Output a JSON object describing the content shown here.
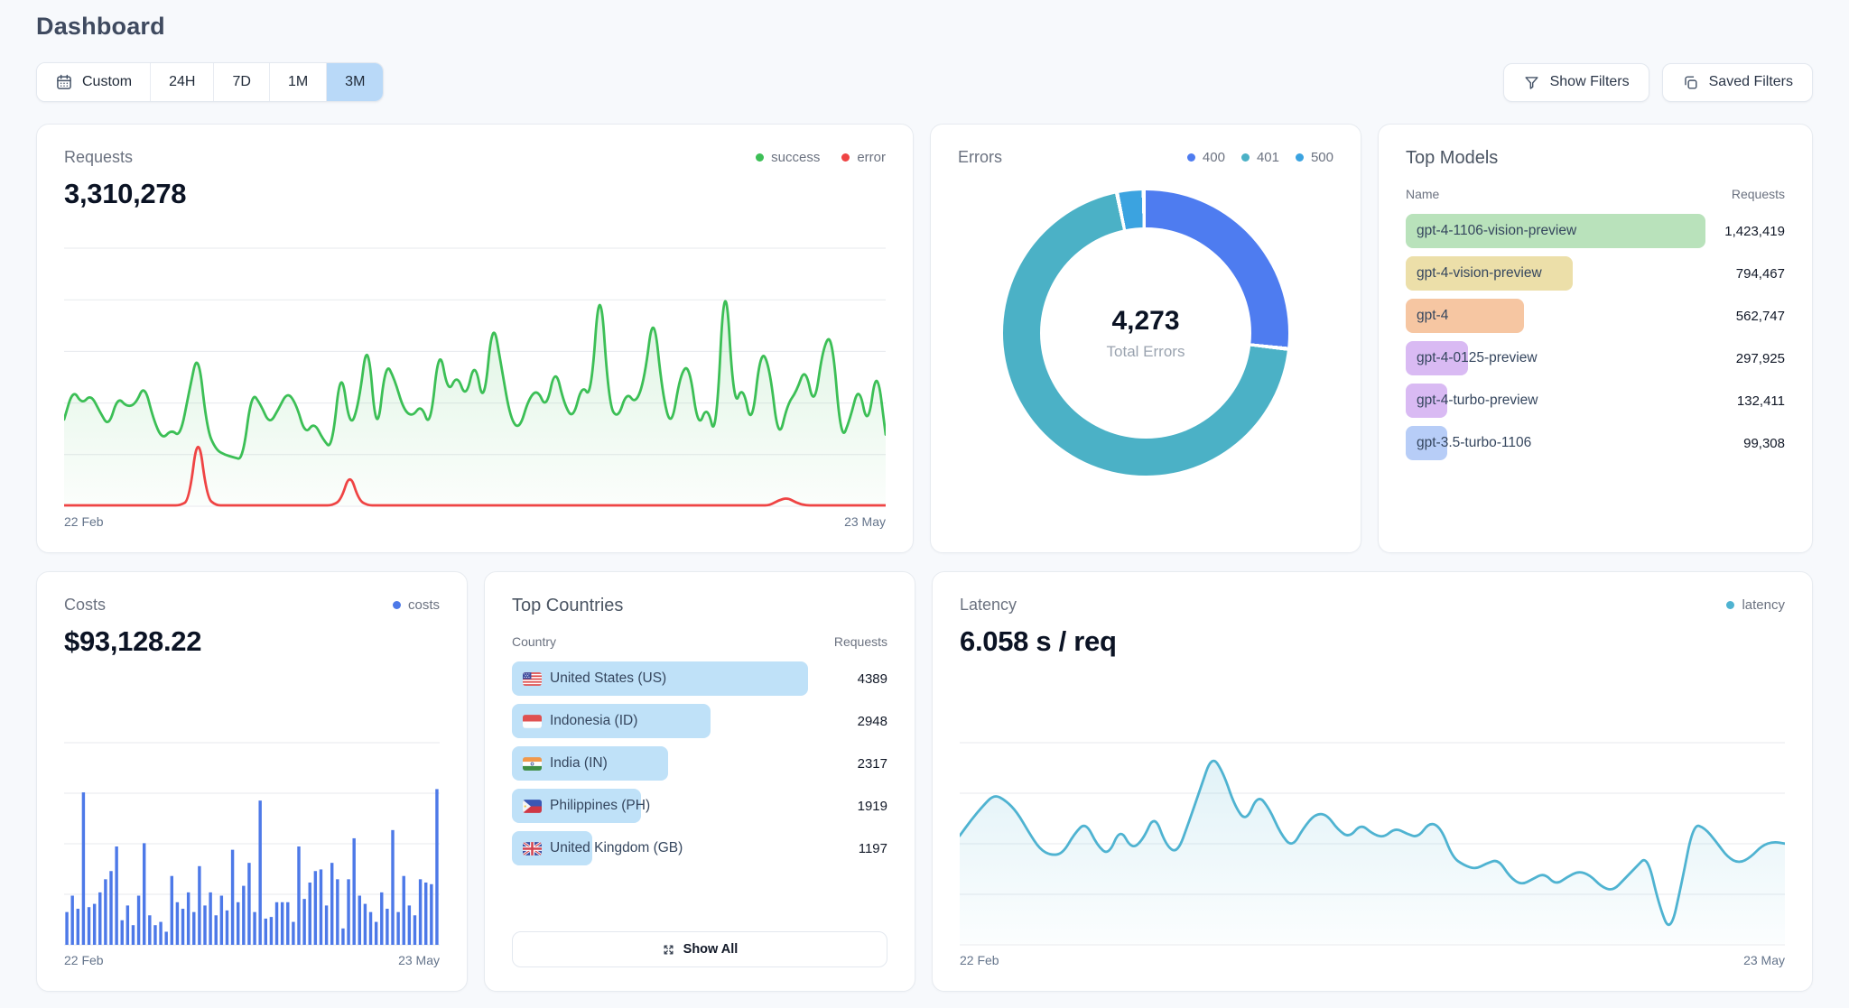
{
  "page": {
    "title": "Dashboard"
  },
  "colors": {
    "time_range_selected_bg": "#b9d9f8"
  },
  "toolbar": {
    "time_ranges": [
      {
        "label": "Custom"
      },
      {
        "label": "24H"
      },
      {
        "label": "7D"
      },
      {
        "label": "1M"
      },
      {
        "label": "3M"
      }
    ],
    "selected_range": "3M",
    "show_filters": "Show Filters",
    "saved_filters": "Saved Filters"
  },
  "chart_data": [
    {
      "id": "requests",
      "type": "line",
      "title": "Requests",
      "total": "3,310,278",
      "x_range": [
        "22 Feb",
        "23 May"
      ],
      "ymax": 100,
      "gridlines": 6,
      "grid": true,
      "legend_position": "top-right",
      "series": [
        {
          "name": "success",
          "color": "#3cbf56",
          "fill": true,
          "values": [
            34,
            46,
            40,
            44,
            37,
            31,
            43,
            39,
            40,
            48,
            34,
            26,
            30,
            27,
            45,
            62,
            30,
            22,
            20,
            19,
            18,
            45,
            40,
            32,
            38,
            45,
            40,
            28,
            33,
            26,
            22,
            56,
            30,
            40,
            68,
            25,
            57,
            50,
            38,
            35,
            40,
            30,
            64,
            44,
            52,
            42,
            58,
            38,
            75,
            54,
            34,
            30,
            42,
            46,
            38,
            55,
            40,
            34,
            48,
            42,
            92,
            40,
            34,
            45,
            40,
            50,
            78,
            44,
            30,
            52,
            56,
            30,
            40,
            25,
            97,
            38,
            48,
            30,
            62,
            55,
            25,
            40,
            45,
            55,
            38,
            63,
            68,
            25,
            34,
            48,
            30,
            56,
            28
          ]
        },
        {
          "name": "error",
          "color": "#ef4444",
          "fill": false,
          "values": [
            0,
            0,
            0,
            0,
            0,
            0,
            0,
            0,
            0,
            0,
            0,
            0,
            0,
            0,
            2,
            30,
            3,
            0,
            0,
            0,
            0,
            0,
            0,
            0,
            0,
            0,
            0,
            0,
            0,
            0,
            0,
            2,
            13,
            2,
            0,
            0,
            0,
            0,
            0,
            0,
            0,
            0,
            0,
            0,
            0,
            0,
            0,
            0,
            0,
            0,
            0,
            0,
            0,
            0,
            0,
            0,
            0,
            0,
            0,
            0,
            0,
            0,
            0,
            0,
            0,
            0,
            0,
            0,
            0,
            0,
            0,
            0,
            0,
            0,
            0,
            0,
            0,
            0,
            0,
            0,
            2,
            3,
            1,
            0,
            0,
            0,
            0,
            0,
            0,
            0,
            0,
            0,
            0
          ]
        }
      ]
    },
    {
      "id": "errors",
      "type": "donut",
      "title": "Errors",
      "center_value": "4,273",
      "center_label": "Total Errors",
      "slices": [
        {
          "label": "400",
          "share_pct": 27,
          "color": "#4e7cf0"
        },
        {
          "label": "401",
          "share_pct": 70,
          "color": "#4bb1c6"
        },
        {
          "label": "500",
          "share_pct": 3,
          "color": "#3ba3e0"
        }
      ]
    },
    {
      "id": "top_models",
      "type": "hbar",
      "title": "Top Models",
      "columns": [
        "Name",
        "Requests"
      ],
      "min_pct": 14,
      "rows": [
        {
          "name": "gpt-4-1106-vision-preview",
          "value": 1423419,
          "display": "1,423,419",
          "color": "#b9e2bb"
        },
        {
          "name": "gpt-4-vision-preview",
          "value": 794467,
          "display": "794,467",
          "color": "#ecdfa9"
        },
        {
          "name": "gpt-4",
          "value": 562747,
          "display": "562,747",
          "color": "#f6c6a2"
        },
        {
          "name": "gpt-4-0125-preview",
          "value": 297925,
          "display": "297,925",
          "color": "#d9baf3"
        },
        {
          "name": "gpt-4-turbo-preview",
          "value": 132411,
          "display": "132,411",
          "color": "#d9baf3"
        },
        {
          "name": "gpt-3.5-turbo-1106",
          "value": 99308,
          "display": "99,308",
          "color": "#b7cdf7"
        }
      ]
    },
    {
      "id": "costs",
      "type": "bar",
      "title": "Costs",
      "total": "$93,128.22",
      "legend": "costs",
      "color": "#4d79e8",
      "x_range": [
        "22 Feb",
        "23 May"
      ],
      "ymax": 120,
      "gridlines": 5,
      "grid": true,
      "values": [
        20,
        30,
        22,
        93,
        23,
        25,
        32,
        40,
        45,
        60,
        15,
        24,
        12,
        30,
        62,
        18,
        12,
        14,
        8,
        42,
        26,
        22,
        32,
        20,
        48,
        24,
        32,
        18,
        30,
        21,
        58,
        26,
        36,
        50,
        20,
        88,
        16,
        17,
        26,
        26,
        26,
        14,
        60,
        28,
        38,
        45,
        46,
        24,
        50,
        40,
        10,
        40,
        65,
        30,
        25,
        20,
        14,
        32,
        22,
        70,
        20,
        42,
        24,
        18,
        40,
        38,
        37,
        95
      ]
    },
    {
      "id": "top_countries",
      "type": "hbar",
      "title": "Top Countries",
      "columns": [
        "Country",
        "Requests"
      ],
      "pill_color": "#bfe1f8",
      "show_all": "Show All",
      "rows": [
        {
          "name": "United States (US)",
          "flag": "us",
          "value": 4389,
          "display": "4389"
        },
        {
          "name": "Indonesia (ID)",
          "flag": "id",
          "value": 2948,
          "display": "2948"
        },
        {
          "name": "India (IN)",
          "flag": "in",
          "value": 2317,
          "display": "2317"
        },
        {
          "name": "Philippines (PH)",
          "flag": "ph",
          "value": 1919,
          "display": "1919"
        },
        {
          "name": "United Kingdom (GB)",
          "flag": "gb",
          "value": 1197,
          "display": "1197"
        }
      ]
    },
    {
      "id": "latency",
      "type": "line",
      "title": "Latency",
      "total": "6.058 s / req",
      "x_range": [
        "22 Feb",
        "23 May"
      ],
      "ymax": 100,
      "gridlines": 5,
      "grid": true,
      "series": [
        {
          "name": "latency",
          "color": "#4fb3d1",
          "fill": true,
          "values": [
            55,
            63,
            70,
            76,
            73,
            67,
            57,
            48,
            45,
            46,
            56,
            62,
            50,
            45,
            59,
            48,
            53,
            66,
            50,
            46,
            62,
            79,
            96,
            87,
            70,
            62,
            76,
            69,
            56,
            49,
            59,
            66,
            66,
            58,
            54,
            61,
            56,
            54,
            59,
            56,
            54,
            62,
            59,
            44,
            40,
            38,
            41,
            43,
            34,
            30,
            33,
            36,
            30,
            34,
            37,
            35,
            29,
            27,
            33,
            39,
            45,
            20,
            5,
            31,
            61,
            59,
            52,
            44,
            41,
            44,
            50,
            52,
            51
          ]
        }
      ]
    }
  ]
}
